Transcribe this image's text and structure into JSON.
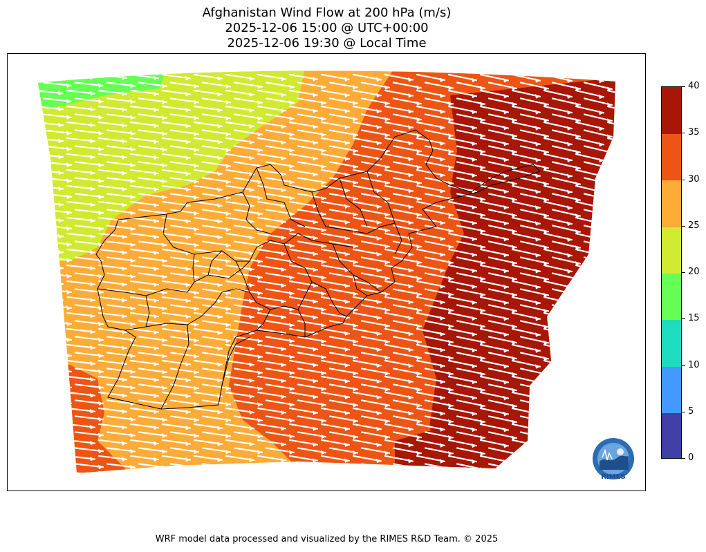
{
  "title": {
    "line1": "Afghanistan Wind Flow at 200 hPa (m/s)",
    "line2": "2025-12-06 15:00 @ UTC+00:00",
    "line3": "2025-12-06 19:30 @ Local Time"
  },
  "colorbar": {
    "levels": [
      {
        "min": 0,
        "max": 5,
        "color": "#3f3fa6"
      },
      {
        "min": 5,
        "max": 10,
        "color": "#4499ff"
      },
      {
        "min": 10,
        "max": 15,
        "color": "#1ddcc0"
      },
      {
        "min": 15,
        "max": 20,
        "color": "#66ff55"
      },
      {
        "min": 20,
        "max": 25,
        "color": "#cfea30"
      },
      {
        "min": 25,
        "max": 30,
        "color": "#ffab38"
      },
      {
        "min": 30,
        "max": 35,
        "color": "#ee5514"
      },
      {
        "min": 35,
        "max": 40,
        "color": "#a81606"
      }
    ],
    "tick_labels": [
      "0",
      "5",
      "10",
      "15",
      "20",
      "25",
      "30",
      "35",
      "40"
    ]
  },
  "map": {
    "region": "Afghanistan",
    "field": "wind speed at 200 hPa",
    "units": "m/s",
    "wind_direction": "westerly (flow toward east-southeast)",
    "shading_colors": {
      "green": "#66ff55",
      "yellow_green": "#cfea30",
      "orange": "#ffab38",
      "red_orange": "#ee5514",
      "dark_red": "#a81606"
    }
  },
  "logo": {
    "text": "RIMES"
  },
  "footer": {
    "text": "WRF model data processed and visualized by the RIMES R&D Team. © 2025"
  }
}
